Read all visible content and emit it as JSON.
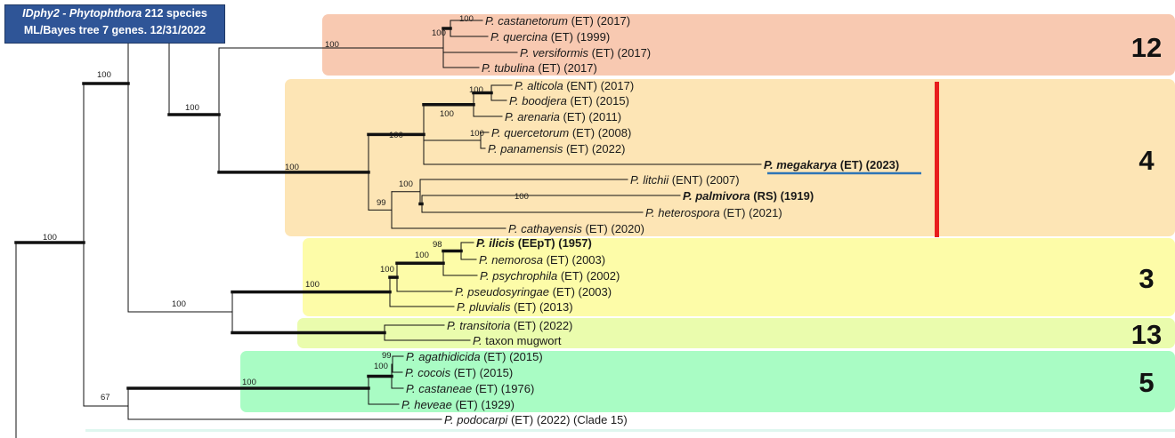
{
  "header": {
    "line1_italic": "IDphy2 - Phytophthora",
    "line1_rest": "212 species",
    "line2": "ML/Bayes tree 7 genes. 12/31/2022"
  },
  "clades": [
    {
      "id": "12",
      "label": "12",
      "color": "#f8c9b1"
    },
    {
      "id": "4",
      "label": "4",
      "color": "#fde5b5"
    },
    {
      "id": "3",
      "label": "3",
      "color": "#fdfca8"
    },
    {
      "id": "13",
      "label": "13",
      "color": "#eafcad"
    },
    {
      "id": "5",
      "label": "5",
      "color": "#a9fcc4"
    }
  ],
  "taxa": [
    {
      "id": "castanetorum",
      "genus": "P.",
      "species": "castanetorum",
      "tag": "(ET) (2017)",
      "bold": false
    },
    {
      "id": "quercina",
      "genus": "P.",
      "species": "quercina",
      "tag": "(ET) (1999)",
      "bold": false
    },
    {
      "id": "versiformis",
      "genus": "P.",
      "species": "versiformis",
      "tag": "(ET) (2017)",
      "bold": false
    },
    {
      "id": "tubulina",
      "genus": "P.",
      "species": "tubulina",
      "tag": "(ET) (2017)",
      "bold": false
    },
    {
      "id": "alticola",
      "genus": "P.",
      "species": "alticola",
      "tag": "(ENT) (2017)",
      "bold": false
    },
    {
      "id": "boodjera",
      "genus": "P.",
      "species": "boodjera",
      "tag": "(ET) (2015)",
      "bold": false
    },
    {
      "id": "arenaria",
      "genus": "P.",
      "species": "arenaria",
      "tag": "(ET) (2011)",
      "bold": false
    },
    {
      "id": "quercetorum",
      "genus": "P.",
      "species": "quercetorum",
      "tag": "(ET) (2008)",
      "bold": false
    },
    {
      "id": "panamensis",
      "genus": "P.",
      "species": "panamensis",
      "tag": "(ET) (2022)",
      "bold": false
    },
    {
      "id": "megakarya",
      "genus": "P.",
      "species": "megakarya",
      "tag": "(ET) (2023)",
      "bold": true
    },
    {
      "id": "litchii",
      "genus": "P.",
      "species": "litchii",
      "tag": "(ENT) (2007)",
      "bold": false
    },
    {
      "id": "palmivora",
      "genus": "P.",
      "species": "palmivora",
      "tag": "(RS) (1919)",
      "bold": true
    },
    {
      "id": "heterospora",
      "genus": "P.",
      "species": "heterospora",
      "tag": "(ET) (2021)",
      "bold": false
    },
    {
      "id": "cathayensis",
      "genus": "P.",
      "species": "cathayensis",
      "tag": "(ET) (2020)",
      "bold": false
    },
    {
      "id": "ilicis",
      "genus": "P.",
      "species": "ilicis",
      "tag": "(EEpT) (1957)",
      "bold": true
    },
    {
      "id": "nemorosa",
      "genus": "P.",
      "species": "nemorosa",
      "tag": "(ET) (2003)",
      "bold": false
    },
    {
      "id": "psychrophila",
      "genus": "P.",
      "species": "psychrophila",
      "tag": "(ET) (2002)",
      "bold": false
    },
    {
      "id": "pseudosyringae",
      "genus": "P.",
      "species": "pseudosyringae",
      "tag": "(ET) (2003)",
      "bold": false
    },
    {
      "id": "pluvialis",
      "genus": "P.",
      "species": "pluvialis",
      "tag": "(ET) (2013)",
      "bold": false
    },
    {
      "id": "transitoria",
      "genus": "P.",
      "species": "transitoria",
      "tag": "(ET) (2022)",
      "bold": false
    },
    {
      "id": "mugwort",
      "genus": "P.",
      "species": "",
      "tag": "taxon mugwort",
      "bold": false
    },
    {
      "id": "agathidicida",
      "genus": "P.",
      "species": "agathidicida",
      "tag": "(ET) (2015)",
      "bold": false
    },
    {
      "id": "cocois",
      "genus": "P.",
      "species": "cocois",
      "tag": "(ET) (2015)",
      "bold": false
    },
    {
      "id": "castaneae",
      "genus": "P.",
      "species": "castaneae",
      "tag": "(ET) (1976)",
      "bold": false
    },
    {
      "id": "heveae",
      "genus": "P.",
      "species": "heveae",
      "tag": "(ET) (1929)",
      "bold": false
    },
    {
      "id": "podocarpi",
      "genus": "P.",
      "species": "podocarpi",
      "tag": "(ET) (2022) (Clade 15)",
      "bold": false
    }
  ],
  "supports": [
    {
      "id": "n_root",
      "value": "100"
    },
    {
      "id": "n_A",
      "value": "100"
    },
    {
      "id": "n_B",
      "value": "100"
    },
    {
      "id": "n_C",
      "value": "100"
    },
    {
      "id": "n_D",
      "value": "100"
    },
    {
      "id": "n_E",
      "value": "100"
    },
    {
      "id": "n_F",
      "value": "100"
    },
    {
      "id": "n_G",
      "value": "100"
    },
    {
      "id": "n_H",
      "value": "100"
    },
    {
      "id": "n_I",
      "value": "100"
    },
    {
      "id": "n_J",
      "value": "100"
    },
    {
      "id": "n_K",
      "value": "99"
    },
    {
      "id": "n_L",
      "value": "100"
    },
    {
      "id": "n_M",
      "value": "100"
    },
    {
      "id": "n_N",
      "value": "100"
    },
    {
      "id": "n_O",
      "value": "100"
    },
    {
      "id": "n_P",
      "value": "100"
    },
    {
      "id": "n_Q",
      "value": "98"
    },
    {
      "id": "n_R",
      "value": "100"
    },
    {
      "id": "n_S",
      "value": "67"
    },
    {
      "id": "n_T",
      "value": "100"
    },
    {
      "id": "n_U",
      "value": "100"
    },
    {
      "id": "n_V",
      "value": "99"
    }
  ],
  "colors": {
    "branch": "#111111",
    "highlight_bar": "#e81e1e",
    "underline": "#2e75b6"
  }
}
